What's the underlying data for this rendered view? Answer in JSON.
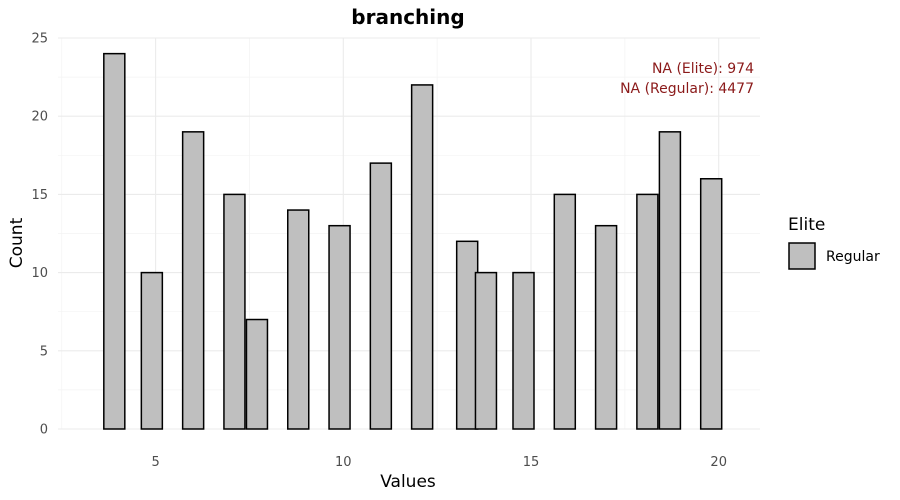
{
  "chart_data": {
    "type": "bar",
    "title": "branching",
    "xlabel": "Values",
    "ylabel": "Count",
    "xlim": [
      2.4,
      21.1
    ],
    "ylim": [
      0,
      25
    ],
    "x_ticks": [
      "5",
      "10",
      "15",
      "20"
    ],
    "y_ticks": [
      "0",
      "5",
      "10",
      "15",
      "20",
      "25"
    ],
    "grid": true,
    "legend": {
      "title": "Elite",
      "position": "right",
      "entries": [
        {
          "label": "Regular",
          "color": "#bfbfbf"
        }
      ]
    },
    "annotations": [
      "NA (Elite): 974",
      "NA (Regular): 4477"
    ],
    "series": [
      {
        "name": "Regular",
        "color": "#bfbfbf",
        "bars": [
          {
            "x": 3.9,
            "value": 24
          },
          {
            "x": 4.9,
            "value": 10
          },
          {
            "x": 6.0,
            "value": 19
          },
          {
            "x": 7.1,
            "value": 15
          },
          {
            "x": 7.7,
            "value": 7
          },
          {
            "x": 8.8,
            "value": 14
          },
          {
            "x": 9.9,
            "value": 13
          },
          {
            "x": 11.0,
            "value": 17
          },
          {
            "x": 12.1,
            "value": 22
          },
          {
            "x": 13.3,
            "value": 12
          },
          {
            "x": 13.8,
            "value": 10
          },
          {
            "x": 14.8,
            "value": 10
          },
          {
            "x": 15.9,
            "value": 15
          },
          {
            "x": 17.0,
            "value": 13
          },
          {
            "x": 18.1,
            "value": 15
          },
          {
            "x": 18.7,
            "value": 19
          },
          {
            "x": 19.8,
            "value": 16
          }
        ]
      }
    ]
  }
}
